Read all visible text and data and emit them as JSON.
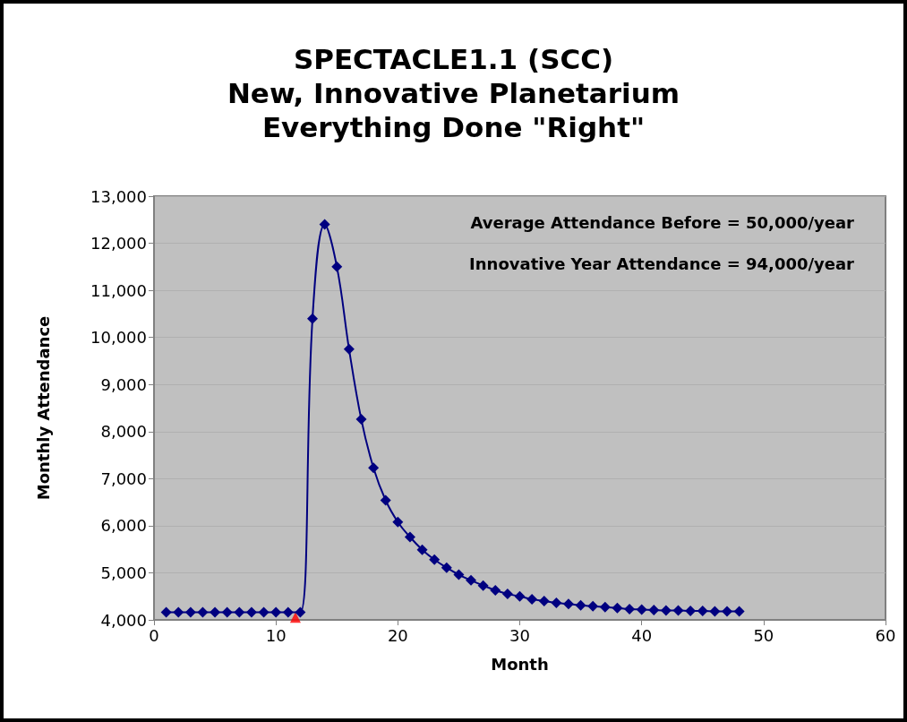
{
  "chart_data": {
    "type": "line",
    "title": "SPECTACLE1.1 (SCC)\nNew, Innovative Planetarium\nEverything Done \"Right\"",
    "xlabel": "Month",
    "ylabel": "Monthly Attendance",
    "annotations": [
      "Average Attendance Before = 50,000/year",
      "Innovative Year Attendance = 94,000/year"
    ],
    "x": [
      1,
      2,
      3,
      4,
      5,
      6,
      7,
      8,
      9,
      10,
      11,
      12,
      13,
      14,
      15,
      16,
      17,
      18,
      19,
      20,
      21,
      22,
      23,
      24,
      25,
      26,
      27,
      28,
      29,
      30,
      31,
      32,
      33,
      34,
      35,
      36,
      37,
      38,
      39,
      40,
      41,
      42,
      43,
      44,
      45,
      46,
      47,
      48
    ],
    "series": [
      {
        "color": "#000080",
        "marker": "diamond",
        "values": [
          4160,
          4160,
          4160,
          4160,
          4160,
          4160,
          4160,
          4160,
          4160,
          4160,
          4160,
          4160,
          10400,
          12400,
          11500,
          9750,
          8260,
          7230,
          6540,
          6080,
          5760,
          5490,
          5280,
          5110,
          4960,
          4840,
          4730,
          4630,
          4550,
          4500,
          4440,
          4400,
          4360,
          4340,
          4310,
          4290,
          4270,
          4250,
          4230,
          4220,
          4210,
          4200,
          4200,
          4190,
          4190,
          4180,
          4180,
          4180
        ]
      },
      {
        "type": "scatter",
        "color": "#ff0000",
        "marker": "triangle",
        "x": [
          11.6
        ],
        "values": [
          4050
        ]
      }
    ],
    "xlim": [
      0,
      60
    ],
    "xticks": [
      0,
      10,
      20,
      30,
      40,
      50,
      60
    ],
    "ylim": [
      4000,
      13000
    ],
    "yticks": [
      {
        "value": 4000,
        "label": "4,000"
      },
      {
        "value": 5000,
        "label": "5,000"
      },
      {
        "value": 6000,
        "label": "6,000"
      },
      {
        "value": 7000,
        "label": "7,000"
      },
      {
        "value": 8000,
        "label": "8,000"
      },
      {
        "value": 9000,
        "label": "9,000"
      },
      {
        "value": 10000,
        "label": "10,000"
      },
      {
        "value": 11000,
        "label": "11,000"
      },
      {
        "value": 12000,
        "label": "12,000"
      },
      {
        "value": 13000,
        "label": "13,000"
      }
    ],
    "grid": "y",
    "line_style": "solid"
  }
}
